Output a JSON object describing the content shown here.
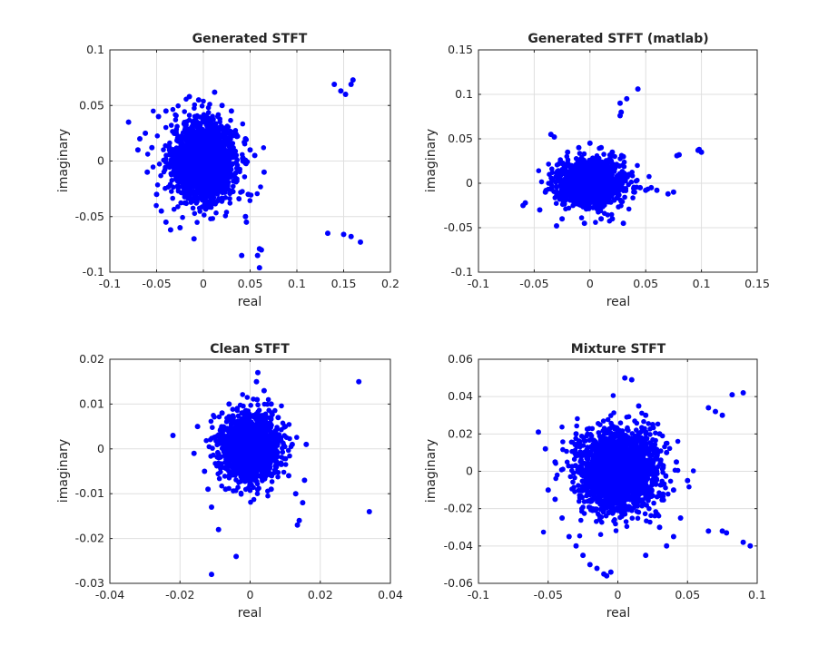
{
  "chart_data": [
    {
      "type": "scatter",
      "title": "Generated STFT",
      "xlabel": "real",
      "ylabel": "imaginary",
      "xlim": [
        -0.1,
        0.2
      ],
      "ylim": [
        -0.1,
        0.1
      ],
      "xticks": [
        "-0.1",
        "-0.05",
        "0",
        "0.05",
        "0.1",
        "0.15",
        "0.2"
      ],
      "yticks": [
        "-0.1",
        "-0.05",
        "0",
        "0.05",
        "0.1"
      ],
      "grid": true,
      "marker_color": "#0000ff",
      "cluster": {
        "center": [
          0.0,
          0.0
        ],
        "spread": [
          0.017,
          0.017
        ],
        "count": 2000
      },
      "points": [
        [
          -0.08,
          0.035
        ],
        [
          -0.068,
          0.02
        ],
        [
          -0.062,
          0.025
        ],
        [
          -0.055,
          0.012
        ],
        [
          -0.06,
          -0.01
        ],
        [
          -0.07,
          0.01
        ],
        [
          -0.048,
          0.04
        ],
        [
          -0.04,
          0.045
        ],
        [
          -0.015,
          0.058
        ],
        [
          -0.005,
          0.055
        ],
        [
          0.012,
          0.062
        ],
        [
          0.02,
          0.05
        ],
        [
          0.03,
          0.045
        ],
        [
          0.045,
          0.02
        ],
        [
          0.05,
          0.01
        ],
        [
          0.055,
          0.005
        ],
        [
          0.065,
          -0.01
        ],
        [
          0.048,
          -0.03
        ],
        [
          0.045,
          -0.05
        ],
        [
          0.046,
          -0.055
        ],
        [
          -0.04,
          -0.055
        ],
        [
          -0.035,
          -0.062
        ],
        [
          -0.025,
          -0.06
        ],
        [
          -0.01,
          -0.07
        ],
        [
          -0.05,
          -0.03
        ],
        [
          -0.045,
          -0.045
        ],
        [
          0.06,
          -0.079
        ],
        [
          0.062,
          -0.08
        ],
        [
          0.058,
          -0.085
        ],
        [
          0.041,
          -0.085
        ],
        [
          0.06,
          -0.096
        ],
        [
          0.14,
          0.069
        ],
        [
          0.147,
          0.063
        ],
        [
          0.152,
          0.06
        ],
        [
          0.158,
          0.069
        ],
        [
          0.16,
          0.073
        ],
        [
          0.133,
          -0.065
        ],
        [
          0.15,
          -0.066
        ],
        [
          0.158,
          -0.068
        ],
        [
          0.168,
          -0.073
        ]
      ]
    },
    {
      "type": "scatter",
      "title": "Generated STFT (matlab)",
      "xlabel": "real",
      "ylabel": "imaginary",
      "xlim": [
        -0.1,
        0.15
      ],
      "ylim": [
        -0.1,
        0.15
      ],
      "xticks": [
        "-0.1",
        "-0.05",
        "0",
        "0.05",
        "0.1",
        "0.15"
      ],
      "yticks": [
        "-0.1",
        "-0.05",
        "0",
        "0.05",
        "0.1",
        "0.15"
      ],
      "grid": true,
      "marker_color": "#0000ff",
      "cluster": {
        "center": [
          0.0,
          0.0
        ],
        "spread": [
          0.014,
          0.012
        ],
        "count": 1800
      },
      "points": [
        [
          -0.06,
          -0.025
        ],
        [
          -0.058,
          -0.022
        ],
        [
          -0.045,
          -0.03
        ],
        [
          -0.04,
          -0.01
        ],
        [
          -0.035,
          0.055
        ],
        [
          -0.032,
          0.052
        ],
        [
          -0.03,
          -0.048
        ],
        [
          -0.025,
          -0.04
        ],
        [
          -0.02,
          0.035
        ],
        [
          -0.01,
          0.04
        ],
        [
          0.0,
          0.045
        ],
        [
          0.01,
          0.04
        ],
        [
          0.02,
          0.035
        ],
        [
          0.03,
          0.03
        ],
        [
          0.035,
          0.01
        ],
        [
          0.04,
          -0.01
        ],
        [
          0.045,
          -0.005
        ],
        [
          0.05,
          -0.008
        ],
        [
          0.055,
          -0.005
        ],
        [
          0.06,
          -0.008
        ],
        [
          0.07,
          -0.012
        ],
        [
          0.075,
          -0.01
        ],
        [
          0.078,
          0.031
        ],
        [
          0.08,
          0.032
        ],
        [
          0.097,
          0.037
        ],
        [
          0.098,
          0.038
        ],
        [
          0.1,
          0.035
        ],
        [
          0.027,
          0.076
        ],
        [
          0.028,
          0.08
        ],
        [
          0.027,
          0.09
        ],
        [
          0.033,
          0.095
        ],
        [
          0.043,
          0.106
        ],
        [
          0.02,
          -0.04
        ],
        [
          0.03,
          -0.045
        ],
        [
          0.01,
          -0.04
        ],
        [
          -0.005,
          -0.045
        ]
      ]
    },
    {
      "type": "scatter",
      "title": "Clean STFT",
      "xlabel": "real",
      "ylabel": "imaginary",
      "xlim": [
        -0.04,
        0.04
      ],
      "ylim": [
        -0.03,
        0.02
      ],
      "xticks": [
        "-0.04",
        "-0.02",
        "0",
        "0.02",
        "0.04"
      ],
      "yticks": [
        "-0.03",
        "-0.02",
        "-0.01",
        "0",
        "0.01",
        "0.02"
      ],
      "grid": true,
      "marker_color": "#0000ff",
      "cluster": {
        "center": [
          0.0,
          0.0
        ],
        "spread": [
          0.004,
          0.0035
        ],
        "count": 1800
      },
      "points": [
        [
          -0.022,
          0.003
        ],
        [
          -0.016,
          -0.001
        ],
        [
          -0.015,
          0.005
        ],
        [
          -0.013,
          -0.005
        ],
        [
          -0.012,
          -0.009
        ],
        [
          -0.011,
          -0.013
        ],
        [
          -0.009,
          -0.018
        ],
        [
          -0.008,
          0.008
        ],
        [
          -0.006,
          0.01
        ],
        [
          -0.004,
          -0.024
        ],
        [
          -0.011,
          -0.028
        ],
        [
          0.002,
          0.011
        ],
        [
          0.004,
          0.013
        ],
        [
          0.0018,
          0.015
        ],
        [
          0.0022,
          0.017
        ],
        [
          0.006,
          0.01
        ],
        [
          0.008,
          0.007
        ],
        [
          0.01,
          0.005
        ],
        [
          0.012,
          0.001
        ],
        [
          0.011,
          -0.006
        ],
        [
          0.013,
          -0.01
        ],
        [
          0.014,
          -0.016
        ],
        [
          0.0135,
          -0.017
        ],
        [
          0.015,
          -0.012
        ],
        [
          0.0155,
          -0.007
        ],
        [
          0.016,
          0.001
        ],
        [
          0.031,
          0.015
        ],
        [
          0.034,
          -0.014
        ],
        [
          -0.007,
          -0.009
        ],
        [
          0.006,
          -0.009
        ]
      ]
    },
    {
      "type": "scatter",
      "title": "Mixture STFT",
      "xlabel": "real",
      "ylabel": "imaginary",
      "xlim": [
        -0.1,
        0.1
      ],
      "ylim": [
        -0.06,
        0.06
      ],
      "xticks": [
        "-0.1",
        "-0.05",
        "0",
        "0.05",
        "0.1"
      ],
      "yticks": [
        "-0.06",
        "-0.04",
        "-0.02",
        "0",
        "0.02",
        "0.04",
        "0.06"
      ],
      "grid": true,
      "marker_color": "#0000ff",
      "cluster": {
        "center": [
          0.0,
          0.0
        ],
        "spread": [
          0.014,
          0.011
        ],
        "count": 2200
      },
      "points": [
        [
          -0.057,
          0.021
        ],
        [
          -0.052,
          0.012
        ],
        [
          -0.05,
          -0.01
        ],
        [
          -0.045,
          -0.015
        ],
        [
          -0.04,
          -0.025
        ],
        [
          -0.035,
          -0.035
        ],
        [
          -0.03,
          -0.04
        ],
        [
          -0.025,
          -0.045
        ],
        [
          -0.02,
          -0.05
        ],
        [
          -0.015,
          -0.052
        ],
        [
          -0.01,
          -0.055
        ],
        [
          -0.008,
          -0.056
        ],
        [
          -0.005,
          -0.054
        ],
        [
          0.005,
          0.05
        ],
        [
          0.01,
          0.049
        ],
        [
          0.015,
          0.035
        ],
        [
          0.02,
          0.03
        ],
        [
          0.03,
          0.02
        ],
        [
          0.035,
          0.01
        ],
        [
          0.04,
          -0.01
        ],
        [
          0.045,
          -0.025
        ],
        [
          0.04,
          -0.035
        ],
        [
          0.035,
          -0.04
        ],
        [
          0.02,
          -0.045
        ],
        [
          0.03,
          -0.03
        ],
        [
          0.065,
          0.034
        ],
        [
          0.07,
          0.032
        ],
        [
          0.075,
          0.03
        ],
        [
          0.082,
          0.041
        ],
        [
          0.09,
          0.042
        ],
        [
          0.065,
          -0.032
        ],
        [
          0.075,
          -0.032
        ],
        [
          0.078,
          -0.033
        ],
        [
          0.09,
          -0.038
        ],
        [
          0.095,
          -0.04
        ],
        [
          -0.045,
          0.005
        ],
        [
          0.042,
          0.005
        ],
        [
          0.05,
          -0.005
        ],
        [
          -0.03,
          0.02
        ],
        [
          0.025,
          0.025
        ]
      ]
    }
  ]
}
